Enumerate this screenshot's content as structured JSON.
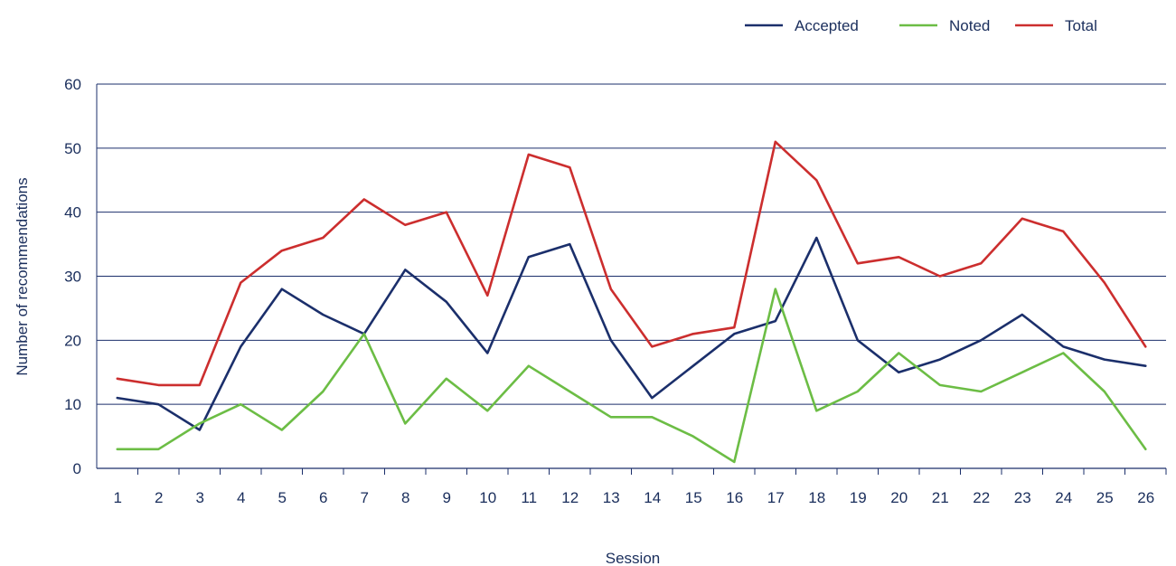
{
  "chart_data": {
    "type": "line",
    "title": "",
    "xlabel": "Session",
    "ylabel": "Number of recommendations",
    "ylim": [
      0,
      60
    ],
    "yticks": [
      0,
      10,
      20,
      30,
      40,
      50,
      60
    ],
    "categories": [
      "1",
      "2",
      "3",
      "4",
      "5",
      "6",
      "7",
      "8",
      "9",
      "10",
      "11",
      "12",
      "13",
      "14",
      "15",
      "16",
      "17",
      "18",
      "19",
      "20",
      "21",
      "22",
      "23",
      "24",
      "25",
      "26"
    ],
    "grid": "horizontal",
    "legend_position": "top-right",
    "series": [
      {
        "name": "Accepted",
        "color": "#1b2f6b",
        "values": [
          11,
          10,
          6,
          19,
          28,
          24,
          21,
          31,
          26,
          18,
          33,
          35,
          20,
          11,
          16,
          21,
          23,
          36,
          20,
          15,
          17,
          20,
          24,
          19,
          17,
          16
        ]
      },
      {
        "name": "Noted",
        "color": "#6cbd45",
        "values": [
          3,
          3,
          7,
          10,
          6,
          12,
          21,
          7,
          14,
          9,
          16,
          12,
          8,
          8,
          5,
          1,
          28,
          9,
          12,
          18,
          13,
          12,
          15,
          18,
          12,
          3
        ]
      },
      {
        "name": "Total",
        "color": "#cc2e2e",
        "values": [
          14,
          13,
          13,
          29,
          34,
          36,
          42,
          38,
          40,
          27,
          49,
          47,
          28,
          19,
          21,
          22,
          51,
          45,
          32,
          33,
          30,
          32,
          39,
          37,
          29,
          19
        ]
      }
    ]
  }
}
